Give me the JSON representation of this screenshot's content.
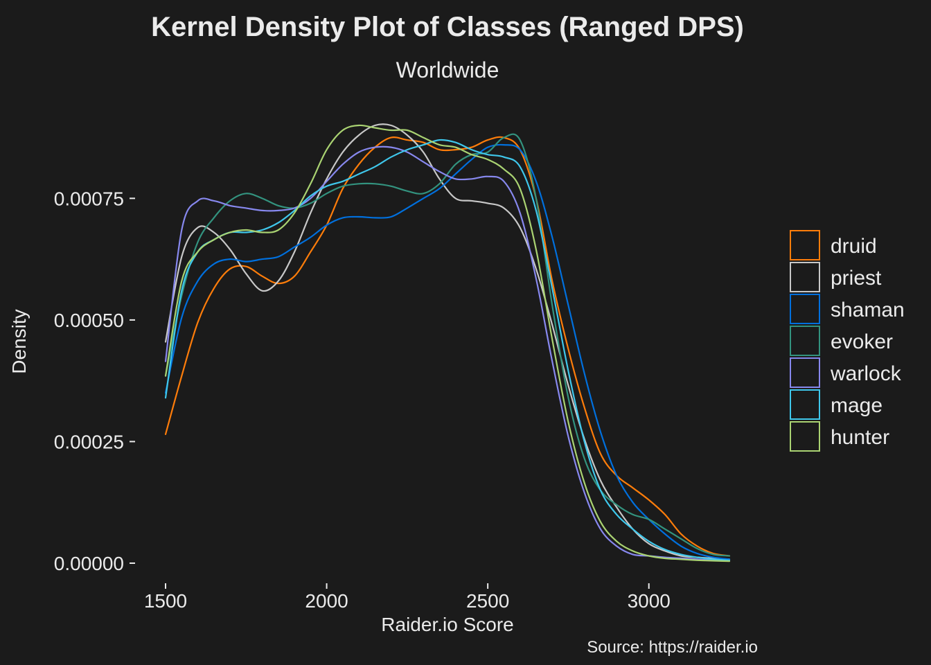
{
  "chart_data": {
    "type": "line",
    "title": "Kernel Density Plot of Classes (Ranged DPS)",
    "subtitle": "Worldwide",
    "xlabel": "Raider.io Score",
    "ylabel": "Density",
    "caption": "Source: https://raider.io",
    "xlim": [
      1500,
      3250
    ],
    "ylim": [
      0,
      0.00091
    ],
    "x_ticks": [
      {
        "value": 1500,
        "label": "1500"
      },
      {
        "value": 2000,
        "label": "2000"
      },
      {
        "value": 2500,
        "label": "2500"
      },
      {
        "value": 3000,
        "label": "3000"
      }
    ],
    "y_ticks": [
      {
        "value": 0,
        "label": "0.00000"
      },
      {
        "value": 0.00025,
        "label": "0.00025"
      },
      {
        "value": 0.0005,
        "label": "0.00050"
      },
      {
        "value": 0.00075,
        "label": "0.00075"
      }
    ],
    "legend_position": "right",
    "x": [
      1500,
      1550,
      1600,
      1650,
      1700,
      1750,
      1800,
      1850,
      1900,
      1950,
      2000,
      2050,
      2100,
      2150,
      2200,
      2250,
      2300,
      2350,
      2400,
      2450,
      2500,
      2550,
      2600,
      2650,
      2700,
      2750,
      2800,
      2850,
      2900,
      2950,
      3000,
      3050,
      3100,
      3150,
      3200,
      3250
    ],
    "series": [
      {
        "name": "druid",
        "color": "#ff7d0a",
        "values": [
          0.000265,
          0.000385,
          0.000495,
          0.000565,
          0.000605,
          0.00061,
          0.00059,
          0.000575,
          0.00059,
          0.00064,
          0.000695,
          0.00077,
          0.00082,
          0.000855,
          0.000875,
          0.00087,
          0.000865,
          0.00085,
          0.00085,
          0.000855,
          0.00087,
          0.000875,
          0.00085,
          0.00075,
          0.00058,
          0.00044,
          0.00032,
          0.000225,
          0.00018,
          0.000155,
          0.00013,
          0.0001,
          6e-05,
          3.5e-05,
          2e-05,
          1.5e-05
        ]
      },
      {
        "name": "priest",
        "color": "#c8c8c8",
        "values": [
          0.000455,
          0.00063,
          0.00069,
          0.00068,
          0.000645,
          0.000595,
          0.00056,
          0.00058,
          0.00064,
          0.00072,
          0.00079,
          0.000845,
          0.00088,
          0.0009,
          0.0009,
          0.00088,
          0.000845,
          0.00079,
          0.00075,
          0.000745,
          0.00074,
          0.00073,
          0.00069,
          0.000605,
          0.00049,
          0.000365,
          0.000255,
          0.00017,
          0.000115,
          7e-05,
          4e-05,
          2.5e-05,
          1.5e-05,
          1.2e-05,
          1e-05,
          8e-06
        ]
      },
      {
        "name": "shaman",
        "color": "#0070de",
        "values": [
          0.00035,
          0.000505,
          0.00058,
          0.000615,
          0.000625,
          0.00062,
          0.000625,
          0.00063,
          0.00065,
          0.00067,
          0.000695,
          0.00071,
          0.000712,
          0.00071,
          0.000712,
          0.00073,
          0.00075,
          0.00077,
          0.0008,
          0.00083,
          0.000855,
          0.00086,
          0.00085,
          0.000785,
          0.00067,
          0.00053,
          0.00039,
          0.00027,
          0.00018,
          0.000125,
          9e-05,
          6e-05,
          3.5e-05,
          2e-05,
          1.2e-05,
          8e-06
        ]
      },
      {
        "name": "evoker",
        "color": "#33937f",
        "values": [
          0.000385,
          0.00055,
          0.00066,
          0.00071,
          0.000745,
          0.00076,
          0.00075,
          0.000735,
          0.00073,
          0.00074,
          0.00076,
          0.000775,
          0.00078,
          0.00078,
          0.000775,
          0.000765,
          0.00076,
          0.00078,
          0.00082,
          0.00084,
          0.000845,
          0.000875,
          0.00087,
          0.00075,
          0.00053,
          0.00034,
          0.000215,
          0.00015,
          0.00012,
          0.0001,
          9e-05,
          7e-05,
          5e-05,
          3e-05,
          1.8e-05,
          1.5e-05
        ]
      },
      {
        "name": "warlock",
        "color": "#8788ee",
        "values": [
          0.000415,
          0.000685,
          0.000745,
          0.000745,
          0.000735,
          0.00073,
          0.000725,
          0.000725,
          0.00073,
          0.00075,
          0.000785,
          0.00082,
          0.000845,
          0.000855,
          0.000855,
          0.000845,
          0.000825,
          0.000805,
          0.00079,
          0.00079,
          0.000795,
          0.000785,
          0.00072,
          0.000585,
          0.000415,
          0.00026,
          0.000145,
          7e-05,
          3.5e-05,
          1.8e-05,
          1.5e-05,
          1.2e-05,
          1e-05,
          8e-06,
          6e-06,
          5e-06
        ]
      },
      {
        "name": "mage",
        "color": "#3fc7eb",
        "values": [
          0.00034,
          0.00056,
          0.00064,
          0.000665,
          0.00068,
          0.00068,
          0.000685,
          0.0007,
          0.000725,
          0.000755,
          0.000775,
          0.000785,
          0.0008,
          0.000815,
          0.000835,
          0.00085,
          0.00086,
          0.00087,
          0.000865,
          0.00085,
          0.00084,
          0.000835,
          0.000815,
          0.000725,
          0.000565,
          0.000395,
          0.00025,
          0.00015,
          0.0001,
          7e-05,
          4.5e-05,
          2.8e-05,
          1.8e-05,
          1.2e-05,
          8e-06,
          6e-06
        ]
      },
      {
        "name": "hunter",
        "color": "#aad372",
        "values": [
          0.000385,
          0.00058,
          0.00064,
          0.000665,
          0.00068,
          0.000685,
          0.00068,
          0.000685,
          0.00072,
          0.00078,
          0.00085,
          0.00089,
          0.0009,
          0.000895,
          0.00089,
          0.00089,
          0.000875,
          0.00086,
          0.000855,
          0.00084,
          0.00083,
          0.00081,
          0.00077,
          0.000645,
          0.00046,
          0.00029,
          0.000165,
          8.5e-05,
          4.5e-05,
          2.5e-05,
          1.5e-05,
          1e-05,
          8e-06,
          6e-06,
          5e-06,
          4e-06
        ]
      }
    ]
  }
}
